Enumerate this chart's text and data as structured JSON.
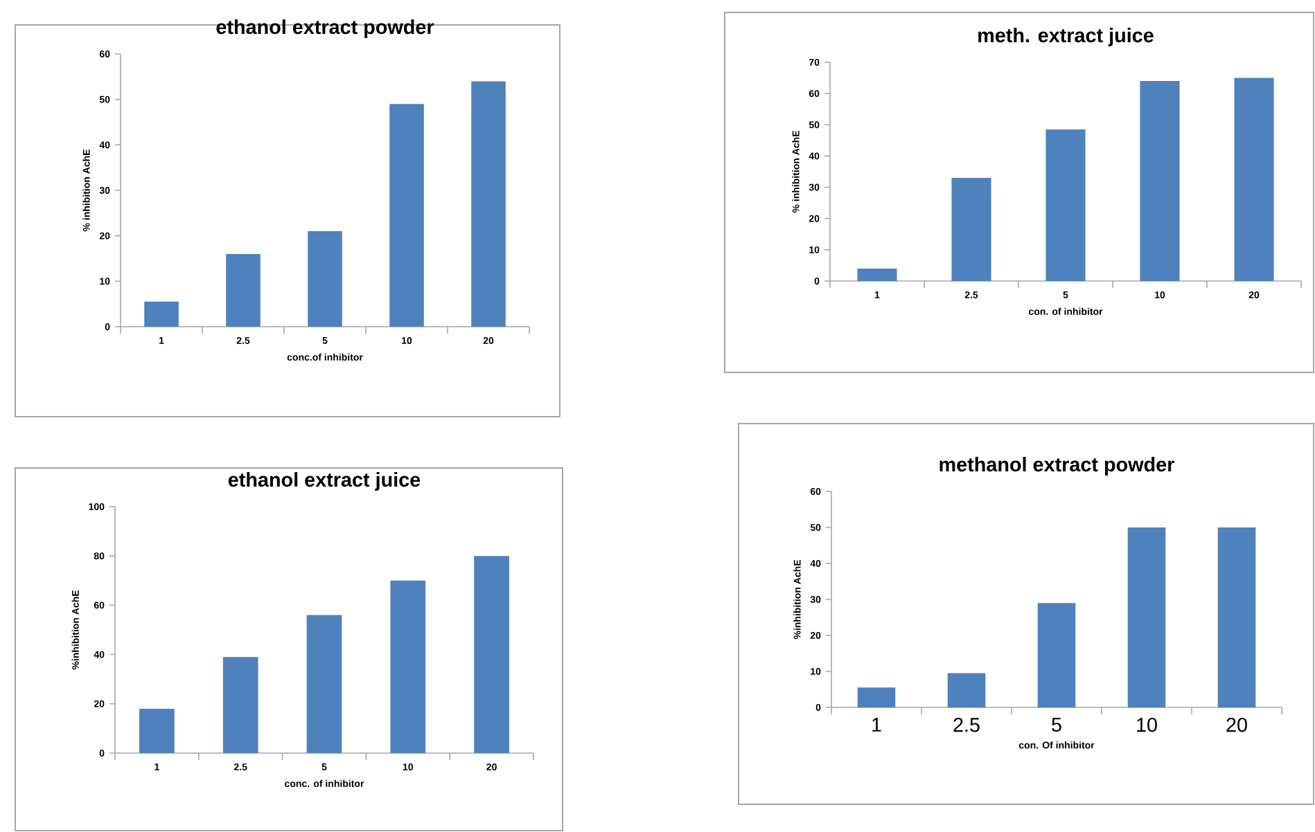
{
  "chart_data": [
    {
      "type": "bar",
      "title": "ethanol  extract powder",
      "xlabel": "conc.of  inhibitor",
      "ylabel": "% inhibition  AchE",
      "categories": [
        "1",
        "2.5",
        "5",
        "10",
        "20"
      ],
      "values": [
        5.5,
        16,
        21,
        49,
        54
      ],
      "color": "#4f81bd",
      "ylim": [
        0,
        60
      ],
      "yticks": [
        0,
        10,
        20,
        30,
        40,
        50,
        60
      ]
    },
    {
      "type": "bar",
      "title": "meth. extract juice",
      "xlabel": "con.  of inhibitor",
      "ylabel": "% inhibition  AchE",
      "categories": [
        "1",
        "2.5",
        "5",
        "10",
        "20"
      ],
      "values": [
        4,
        33,
        48.5,
        64,
        65
      ],
      "color": "#4f81bd",
      "ylim": [
        0,
        70
      ],
      "yticks": [
        0,
        10,
        20,
        30,
        40,
        50,
        60,
        70
      ]
    },
    {
      "type": "bar",
      "title": "ethanol  extract juice",
      "xlabel": "conc.  of inhibitor",
      "ylabel": "%inhibition  AchE",
      "categories": [
        "1",
        "2.5",
        "5",
        "10",
        "20"
      ],
      "values": [
        18,
        39,
        56,
        70,
        80
      ],
      "color": "#4f81bd",
      "ylim": [
        0,
        100
      ],
      "yticks": [
        0,
        20,
        40,
        60,
        80,
        100
      ]
    },
    {
      "type": "bar",
      "title": "methanol  extract powder",
      "xlabel": "con.  Of inhibitor",
      "ylabel": "%inhibition  AchE",
      "categories": [
        "1",
        "2.5",
        "5",
        "10",
        "20"
      ],
      "values": [
        5.5,
        9.5,
        29,
        50,
        50
      ],
      "color": "#4f81bd",
      "ylim": [
        0,
        60
      ],
      "yticks": [
        0,
        10,
        20,
        30,
        40,
        50,
        60
      ]
    }
  ]
}
